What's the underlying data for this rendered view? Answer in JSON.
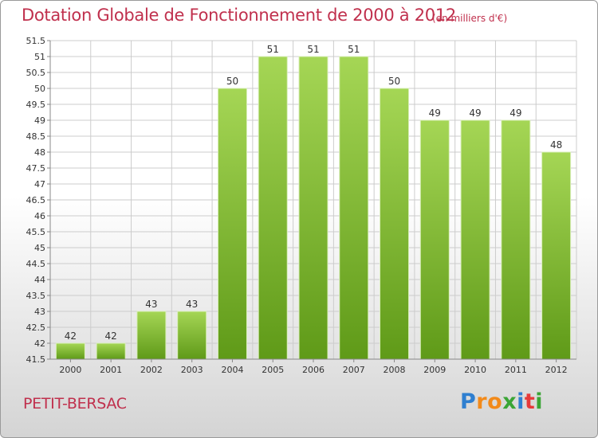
{
  "title": "Dotation Globale de Fonctionnement de 2000 à 2012",
  "subtitle": "(en milliers d'€)",
  "commune": "PETIT-BERSAC",
  "logo": {
    "letters": [
      "P",
      "r",
      "o",
      "x",
      "i",
      "t",
      "i"
    ],
    "colors": [
      "#2f7fd0",
      "#f28a1a",
      "#f28a1a",
      "#3aa535",
      "#2f7fd0",
      "#e63a3a",
      "#3aa535"
    ]
  },
  "chart_data": {
    "type": "bar",
    "categories": [
      "2000",
      "2001",
      "2002",
      "2003",
      "2004",
      "2005",
      "2006",
      "2007",
      "2008",
      "2009",
      "2010",
      "2011",
      "2012"
    ],
    "values": [
      42,
      42,
      43,
      43,
      50,
      51,
      51,
      51,
      50,
      49,
      49,
      49,
      48
    ],
    "value_labels": [
      "42",
      "42",
      "43",
      "43",
      "50",
      "51",
      "51",
      "51",
      "50",
      "49",
      "49",
      "49",
      "48"
    ],
    "yticks": [
      "41.5",
      "42",
      "42.5",
      "43",
      "43.5",
      "44",
      "44.5",
      "45",
      "45.5",
      "46",
      "46.5",
      "47",
      "47.5",
      "48",
      "48.5",
      "49",
      "49.5",
      "50",
      "50.5",
      "51",
      "51.5"
    ],
    "ylim": [
      41.5,
      51.5
    ],
    "xlabel": "",
    "ylabel": "",
    "grid": true,
    "colors": {
      "bar_top": "#a5d655",
      "bar_bottom": "#5f9a18",
      "grid": "#cccccc",
      "text": "#333333"
    }
  }
}
